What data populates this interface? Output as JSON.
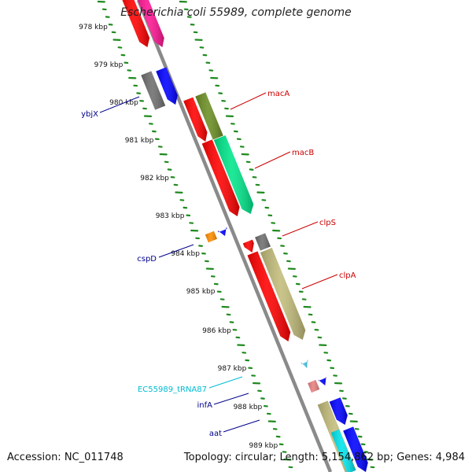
{
  "title": "Escherichia coli 55989, complete genome",
  "footer": {
    "accession": "Accession: NC_011748",
    "topology": "Topology: circular",
    "length": "Length: 5,154,862 bp",
    "genes": "Genes: 4,984"
  },
  "scale_ticks": [
    {
      "label": "978 kbp"
    },
    {
      "label": "979 kbp"
    },
    {
      "label": "980 kbp"
    },
    {
      "label": "981 kbp"
    },
    {
      "label": "982 kbp"
    },
    {
      "label": "983 kbp"
    },
    {
      "label": "984 kbp"
    },
    {
      "label": "985 kbp"
    },
    {
      "label": "986 kbp"
    },
    {
      "label": "987 kbp"
    },
    {
      "label": "988 kbp"
    },
    {
      "label": "989 kbp"
    }
  ],
  "genes": [
    {
      "name": "ybjX",
      "strand": "-",
      "color": "#00008b"
    },
    {
      "name": "cspD",
      "strand": "-",
      "color": "#00008b"
    },
    {
      "name": "EC55989_tRNA87",
      "strand": "-",
      "color": "#00bcd4"
    },
    {
      "name": "infA",
      "strand": "-",
      "color": "#00008b"
    },
    {
      "name": "aat",
      "strand": "-",
      "color": "#00008b"
    },
    {
      "name": "macA",
      "strand": "+",
      "color": "#cc0000"
    },
    {
      "name": "macB",
      "strand": "+",
      "color": "#cc0000"
    },
    {
      "name": "clpS",
      "strand": "+",
      "color": "#cc0000"
    },
    {
      "name": "clpA",
      "strand": "+",
      "color": "#cc0000"
    }
  ],
  "colors": {
    "backbone": "#8a8a8a",
    "tick": "#1e8a1e",
    "cds_red": "#ff0000",
    "cds_blue": "#0000ff",
    "cds_gray": "#6e6e6e",
    "cds_olive": "#6b8e23",
    "cds_khaki": "#c2bc7a",
    "cds_spring": "#00e68a",
    "cds_magenta": "#ff1493",
    "cds_orange": "#ff8c00",
    "cds_pink": "#e88080",
    "cds_cyan": "#00e5ee",
    "trna": "#40c8e0"
  }
}
